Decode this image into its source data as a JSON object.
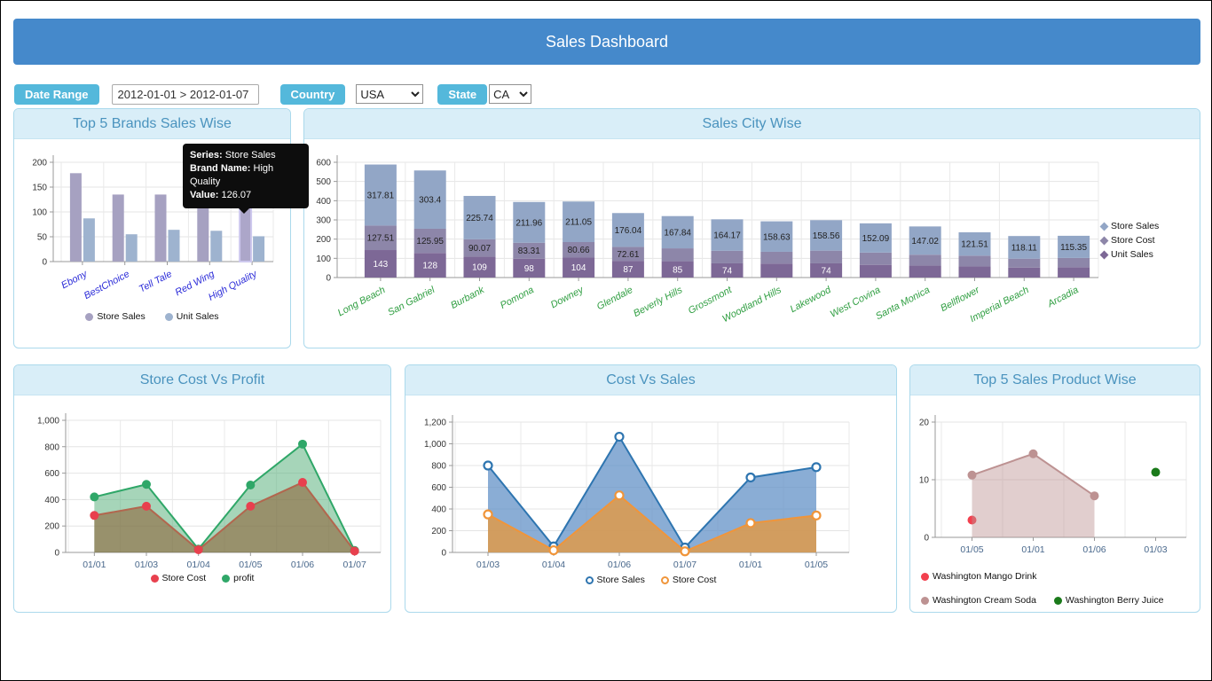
{
  "header": {
    "title": "Sales Dashboard"
  },
  "filters": {
    "date_range": {
      "label": "Date Range",
      "value": "2012-01-01 > 2012-01-07"
    },
    "country": {
      "label": "Country",
      "value": "USA"
    },
    "state": {
      "label": "State",
      "value": "CA"
    }
  },
  "tooltip": {
    "series_label": "Series:",
    "series_value": "Store Sales",
    "brand_label": "Brand Name:",
    "brand_value": "High Quality",
    "value_label": "Value:",
    "value_value": "126.07"
  },
  "chart_data": [
    {
      "id": "brands",
      "type": "bar",
      "title": "Top 5 Brands Sales Wise",
      "categories": [
        "Ebony",
        "BestChoice",
        "Tell Tale",
        "Red Wing",
        "High Quality"
      ],
      "series": [
        {
          "name": "Store Sales",
          "color": "#a6a1c1",
          "values": [
            178,
            135,
            135,
            130,
            126.07
          ]
        },
        {
          "name": "Unit Sales",
          "color": "#9eb3cf",
          "values": [
            87,
            55,
            64,
            62,
            51
          ]
        }
      ],
      "ylim": [
        0,
        200
      ],
      "yticks": [
        0,
        50,
        100,
        150,
        200
      ],
      "ytick_labels": [
        "0",
        "50",
        "100",
        "150",
        "200"
      ],
      "legend_position": "bottom",
      "highlight": {
        "series": "Store Sales",
        "category": "High Quality",
        "color": "#aca6c9",
        "border": "#cdc8ee"
      }
    },
    {
      "id": "cities",
      "type": "bar",
      "stacked": true,
      "title": "Sales City Wise",
      "categories": [
        "Long Beach",
        "San Gabriel",
        "Burbank",
        "Pomona",
        "Downey",
        "Glendale",
        "Beverly Hills",
        "Grossmont",
        "Woodland Hills",
        "Lakewood",
        "West Covina",
        "Santa Monica",
        "Bellflower",
        "Imperial Beach",
        "Arcadia"
      ],
      "series": [
        {
          "name": "Unit Sales",
          "color": "#7d6896",
          "label_color": "#ffffff",
          "values": [
            143,
            128,
            109,
            98,
            104,
            87,
            85,
            74,
            72,
            74,
            66,
            62,
            58,
            52,
            54
          ],
          "labels": [
            "143",
            "128",
            "109",
            "98",
            "104",
            "87",
            "85",
            "74",
            null,
            "74",
            null,
            null,
            null,
            null,
            null
          ]
        },
        {
          "name": "Store Cost",
          "color": "#8d86a9",
          "label_color": "#222222",
          "values": [
            127.51,
            125.95,
            90.07,
            83.31,
            80.66,
            72.61,
            67,
            65,
            62,
            66,
            64,
            57,
            56,
            46,
            48
          ],
          "labels": [
            "127.51",
            "125.95",
            "90.07",
            "83.31",
            "80.66",
            "72.61",
            null,
            null,
            null,
            null,
            null,
            null,
            null,
            null,
            null
          ]
        },
        {
          "name": "Store Sales",
          "color": "#92a6c6",
          "label_color": "#222222",
          "values": [
            317.81,
            303.4,
            225.74,
            211.96,
            211.05,
            176.04,
            167.84,
            164.17,
            158.63,
            158.56,
            152.09,
            147.02,
            121.51,
            118.11,
            115.35
          ],
          "labels": [
            "317.81",
            "303.4",
            "225.74",
            "211.96",
            "211.05",
            "176.04",
            "167.84",
            "164.17",
            "158.63",
            "158.56",
            "152.09",
            "147.02",
            "121.51",
            "118.11",
            "115.35"
          ]
        }
      ],
      "ylim": [
        0,
        600
      ],
      "yticks": [
        0,
        100,
        200,
        300,
        400,
        500,
        600
      ],
      "ytick_labels": [
        "0",
        "100",
        "200",
        "300",
        "400",
        "500",
        "600"
      ],
      "legend_position": "right",
      "legend_order": [
        "Store Sales",
        "Store Cost",
        "Unit Sales"
      ]
    },
    {
      "id": "cost_profit",
      "type": "area",
      "title": "Store Cost Vs Profit",
      "x": [
        "01/01",
        "01/03",
        "01/04",
        "01/05",
        "01/06",
        "01/07"
      ],
      "series": [
        {
          "name": "profit",
          "color": "#2fa768",
          "fill": "rgba(77,172,115,0.5)",
          "marker": "filled",
          "values": [
            420,
            515,
            25,
            510,
            820,
            15
          ]
        },
        {
          "name": "Store Cost",
          "color": "#e8404e",
          "line_color": "#b2664e",
          "fill": "rgba(141,89,45,0.55)",
          "marker": "filled",
          "values": [
            280,
            350,
            20,
            350,
            530,
            10
          ]
        }
      ],
      "ylim": [
        0,
        1000
      ],
      "yticks": [
        0,
        200,
        400,
        600,
        800,
        1000
      ],
      "ytick_labels": [
        "0",
        "200",
        "400",
        "600",
        "800",
        "1,000"
      ],
      "legend_position": "bottom",
      "legend_order": [
        "Store Cost",
        "profit"
      ]
    },
    {
      "id": "cost_sales",
      "type": "area",
      "title": "Cost Vs Sales",
      "x": [
        "01/03",
        "01/04",
        "01/06",
        "01/07",
        "01/01",
        "01/05"
      ],
      "series": [
        {
          "name": "Store Sales",
          "color": "#2e75b0",
          "fill": "rgba(99,146,199,0.75)",
          "marker": "hollow",
          "values": [
            800,
            55,
            1065,
            45,
            690,
            785
          ]
        },
        {
          "name": "Store Cost",
          "color": "#f0953a",
          "fill": "rgba(217,155,82,0.9)",
          "marker": "hollow",
          "values": [
            350,
            20,
            525,
            10,
            270,
            340
          ]
        }
      ],
      "ylim": [
        0,
        1200
      ],
      "yticks": [
        0,
        200,
        400,
        600,
        800,
        1000,
        1200
      ],
      "ytick_labels": [
        "0",
        "200",
        "400",
        "600",
        "800",
        "1,000",
        "1,200"
      ],
      "legend_position": "bottom",
      "legend_order": [
        "Store Sales",
        "Store Cost"
      ]
    },
    {
      "id": "products",
      "type": "area",
      "title": "Top 5 Sales Product Wise",
      "x": [
        "01/05",
        "01/01",
        "01/06",
        "01/03"
      ],
      "series": [
        {
          "name": "Washington Mango Drink",
          "color": "#f2404e",
          "marker": "filled",
          "area": false,
          "values": [
            3,
            null,
            null,
            null
          ]
        },
        {
          "name": "Washington Cream Soda",
          "color": "#bd9292",
          "fill": "rgba(189,146,146,0.45)",
          "marker": "filled",
          "values": [
            10.8,
            14.5,
            7.2,
            null
          ]
        },
        {
          "name": "Washington Berry Juice",
          "color": "#1a7a1a",
          "marker": "filled",
          "area": false,
          "values": [
            null,
            null,
            null,
            11.3
          ]
        }
      ],
      "ylim": [
        0,
        20
      ],
      "yticks": [
        0,
        10,
        20
      ],
      "ytick_labels": [
        "0",
        "10",
        "20"
      ],
      "legend_position": "bottom",
      "legend_rows": [
        [
          "Washington Mango Drink"
        ],
        [
          "Washington Cream Soda",
          "Washington Berry Juice"
        ]
      ]
    }
  ]
}
